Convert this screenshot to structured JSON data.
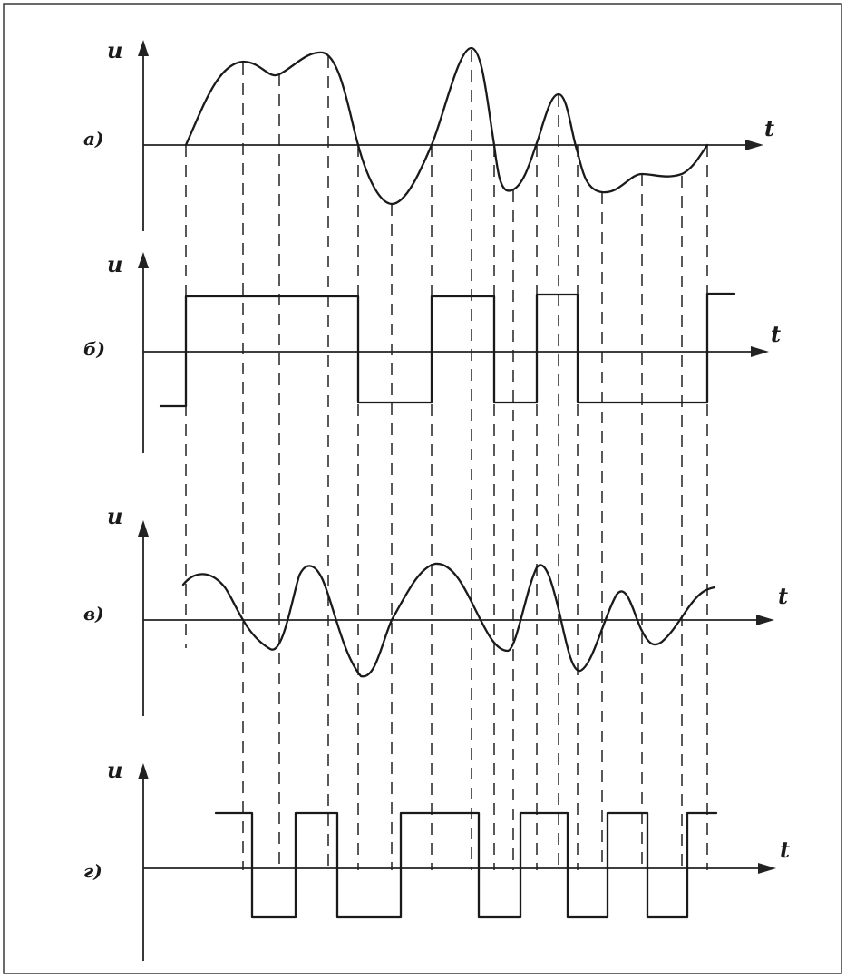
{
  "figure": {
    "panels": [
      {
        "id": "a",
        "label": "а)",
        "y_axis_label": "u",
        "x_axis_label": "t",
        "signal": "input waveform"
      },
      {
        "id": "b",
        "label": "б)",
        "y_axis_label": "u",
        "x_axis_label": "t",
        "signal": "sign of input (square)"
      },
      {
        "id": "v",
        "label": "в)",
        "y_axis_label": "u",
        "x_axis_label": "t",
        "signal": "derivative waveform"
      },
      {
        "id": "g",
        "label": "г)",
        "y_axis_label": "u",
        "x_axis_label": "t",
        "signal": "sign of derivative (square)"
      }
    ]
  }
}
